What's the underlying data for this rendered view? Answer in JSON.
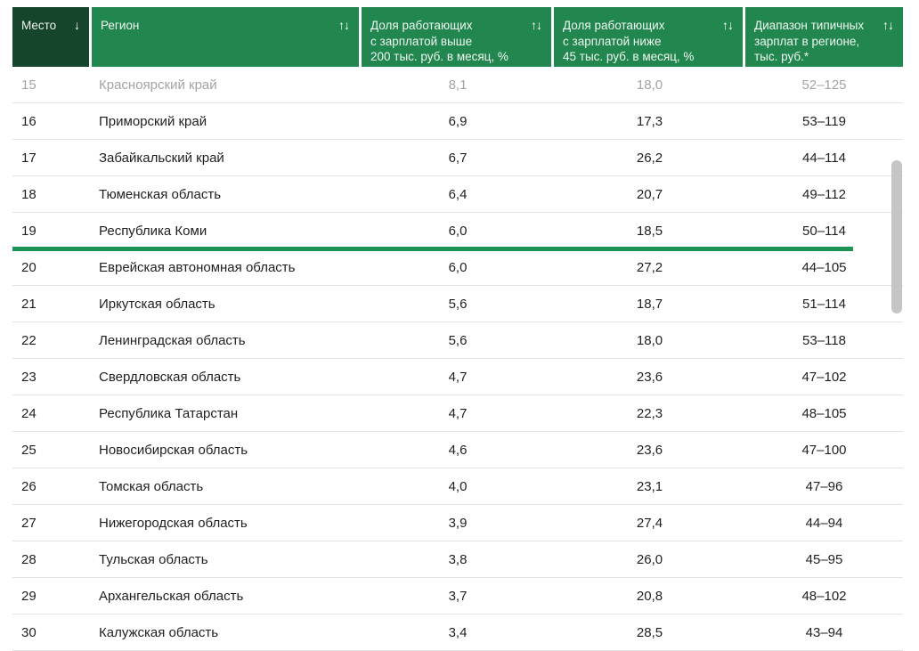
{
  "table": {
    "columns": [
      {
        "label": "Место",
        "sort_glyph": "↓",
        "sorted": true
      },
      {
        "label": "Регион",
        "sort_glyph": "↑↓",
        "sorted": false
      },
      {
        "label": "Доля работающих\nс зарплатой выше\n200 тыс. руб. в месяц, %",
        "sort_glyph": "↑↓",
        "sorted": false
      },
      {
        "label": "Доля работающих\nс зарплатой ниже\n45 тыс. руб. в месяц, %",
        "sort_glyph": "↑↓",
        "sorted": false
      },
      {
        "label": "Диапазон типичных\nзарплат в регионе,\nтыс. руб.*",
        "sort_glyph": "↑↓",
        "sorted": false
      }
    ],
    "rows": [
      {
        "place": "15",
        "region": "Красноярский край",
        "above": "8,1",
        "below": "18,0",
        "range": "52–125",
        "muted": true,
        "selected": false
      },
      {
        "place": "16",
        "region": "Приморский край",
        "above": "6,9",
        "below": "17,3",
        "range": "53–119",
        "muted": false,
        "selected": false
      },
      {
        "place": "17",
        "region": "Забайкальский край",
        "above": "6,7",
        "below": "26,2",
        "range": "44–114",
        "muted": false,
        "selected": false
      },
      {
        "place": "18",
        "region": "Тюменская область",
        "above": "6,4",
        "below": "20,7",
        "range": "49–112",
        "muted": false,
        "selected": false
      },
      {
        "place": "19",
        "region": "Республика Коми",
        "above": "6,0",
        "below": "18,5",
        "range": "50–114",
        "muted": false,
        "selected": true
      },
      {
        "place": "20",
        "region": "Еврейская автономная область",
        "above": "6,0",
        "below": "27,2",
        "range": "44–105",
        "muted": false,
        "selected": false
      },
      {
        "place": "21",
        "region": "Иркутская область",
        "above": "5,6",
        "below": "18,7",
        "range": "51–114",
        "muted": false,
        "selected": false
      },
      {
        "place": "22",
        "region": "Ленинградская область",
        "above": "5,6",
        "below": "18,0",
        "range": "53–118",
        "muted": false,
        "selected": false
      },
      {
        "place": "23",
        "region": "Свердловская область",
        "above": "4,7",
        "below": "23,6",
        "range": "47–102",
        "muted": false,
        "selected": false
      },
      {
        "place": "24",
        "region": "Республика Татарстан",
        "above": "4,7",
        "below": "22,3",
        "range": "48–105",
        "muted": false,
        "selected": false
      },
      {
        "place": "25",
        "region": "Новосибирская область",
        "above": "4,6",
        "below": "23,6",
        "range": "47–100",
        "muted": false,
        "selected": false
      },
      {
        "place": "26",
        "region": "Томская область",
        "above": "4,0",
        "below": "23,1",
        "range": "47–96",
        "muted": false,
        "selected": false
      },
      {
        "place": "27",
        "region": "Нижегородская область",
        "above": "3,9",
        "below": "27,4",
        "range": "44–94",
        "muted": false,
        "selected": false
      },
      {
        "place": "28",
        "region": "Тульская область",
        "above": "3,8",
        "below": "26,0",
        "range": "45–95",
        "muted": false,
        "selected": false
      },
      {
        "place": "29",
        "region": "Архангельская область",
        "above": "3,7",
        "below": "20,8",
        "range": "48–102",
        "muted": false,
        "selected": false
      },
      {
        "place": "30",
        "region": "Калужская область",
        "above": "3,4",
        "below": "28,5",
        "range": "43–94",
        "muted": false,
        "selected": false
      }
    ],
    "colors": {
      "header_dark_green": "#15452a",
      "header_green": "#22864f",
      "selected_underline_green": "#1b9355",
      "row_separator": "#e2e2e2",
      "muted_text": "#a3a3a3",
      "text": "#1f1f1f",
      "scrollbar_thumb": "#c5c5c5"
    }
  }
}
